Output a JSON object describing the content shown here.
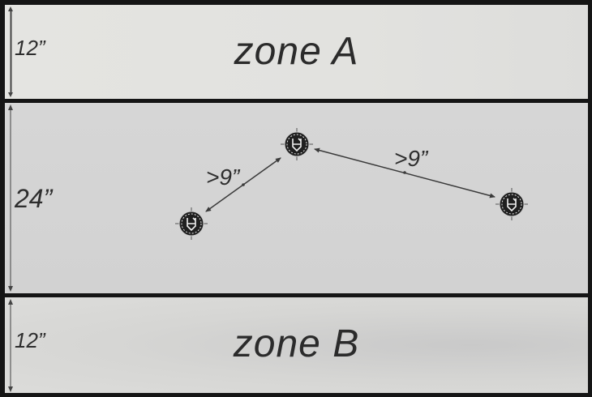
{
  "zones": {
    "top": {
      "title": "zone A",
      "depth": "12”"
    },
    "middle": {
      "depth": "24”"
    },
    "bottom": {
      "title": "zone B",
      "depth": "12”"
    }
  },
  "distances": {
    "left": ">9”",
    "right": ">9”"
  },
  "markers": [
    {
      "name": "left-objective",
      "icon": "objective-marker-icon"
    },
    {
      "name": "center-objective",
      "icon": "objective-marker-icon"
    },
    {
      "name": "right-objective",
      "icon": "objective-marker-icon"
    }
  ],
  "colors": {
    "marker": "#1f1f1f",
    "line": "#3a3a3a",
    "border": "#151515"
  }
}
